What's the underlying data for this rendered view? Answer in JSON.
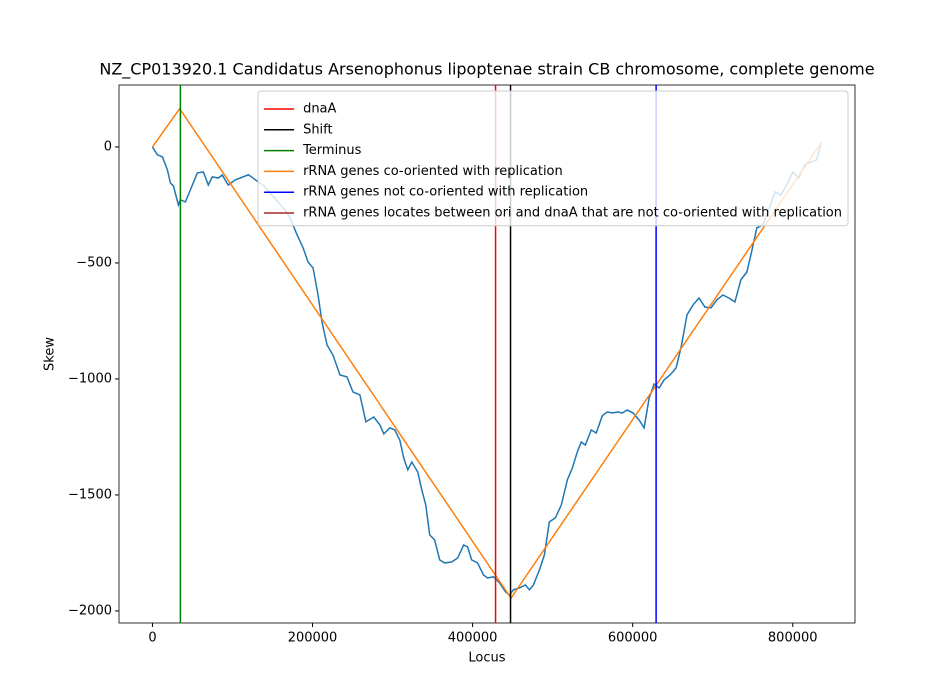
{
  "chart_data": {
    "type": "line",
    "title": "NZ_CP013920.1 Candidatus Arsenophonus lipoptenae strain CB chromosome, complete genome",
    "xlabel": "Locus",
    "ylabel": "Skew",
    "xlim": [
      -41800,
      877800
    ],
    "ylim": [
      -2052,
      267
    ],
    "xticks": [
      0,
      200000,
      400000,
      600000,
      800000
    ],
    "yticks": [
      {
        "value": -2000,
        "label": "−2000"
      },
      {
        "value": -1500,
        "label": "−1500"
      },
      {
        "value": -1000,
        "label": "−1000"
      },
      {
        "value": -500,
        "label": "−500"
      },
      0
    ],
    "legend": "upper right",
    "lines": [
      {
        "color": "#1f77b4",
        "x": [
          0,
          6200,
          12500,
          18700,
          22400,
          26200,
          32400,
          34900,
          41100,
          47400,
          56100,
          63600,
          69800,
          74800,
          82200,
          87200,
          94700,
          103400,
          120000,
          140000,
          165700,
          172000,
          180700,
          188200,
          194400,
          200700,
          206900,
          211800,
          218100,
          225500,
          234300,
          243000,
          250500,
          259200,
          266700,
          276600,
          284100,
          289100,
          296600,
          302800,
          309000,
          314000,
          319000,
          324000,
          331500,
          336500,
          341500,
          346400,
          352600,
          358900,
          365100,
          373800,
          381300,
          388800,
          393800,
          398800,
          406200,
          413700,
          418700,
          426200,
          433600,
          441100,
          446100,
          451100,
          458600,
          466000,
          471000,
          476000,
          483500,
          489700,
          495900,
          503400,
          510900,
          518400,
          524600,
          530800,
          535800,
          540800,
          548300,
          554500,
          562000,
          568200,
          574500,
          581900,
          586900,
          593100,
          600600,
          608100,
          614300,
          620600,
          626800,
          633100,
          639300,
          646700,
          654200,
          660400,
          667900,
          675400,
          682900,
          690300,
          697800,
          705300,
          712800,
          720200,
          727700,
          735200,
          742700,
          747700,
          755100,
          762600,
          770100,
          777600,
          785000,
          792500,
          800000,
          807500,
          815000,
          822400,
          829900,
          834900
        ],
        "values": [
          0,
          -34,
          -43,
          -99,
          -155,
          -168,
          -250,
          -228,
          -237,
          -185,
          -112,
          -108,
          -164,
          -129,
          -134,
          -121,
          -164,
          -142,
          -120,
          -170,
          -272,
          -306,
          -379,
          -435,
          -496,
          -522,
          -638,
          -754,
          -853,
          -897,
          -983,
          -991,
          -1056,
          -1069,
          -1185,
          -1164,
          -1198,
          -1237,
          -1211,
          -1220,
          -1263,
          -1341,
          -1392,
          -1358,
          -1401,
          -1478,
          -1543,
          -1672,
          -1694,
          -1780,
          -1793,
          -1789,
          -1772,
          -1716,
          -1724,
          -1780,
          -1793,
          -1845,
          -1858,
          -1853,
          -1879,
          -1918,
          -1931,
          -1909,
          -1901,
          -1888,
          -1909,
          -1888,
          -1823,
          -1759,
          -1616,
          -1599,
          -1543,
          -1435,
          -1384,
          -1315,
          -1272,
          -1285,
          -1220,
          -1233,
          -1159,
          -1142,
          -1147,
          -1142,
          -1147,
          -1134,
          -1147,
          -1177,
          -1211,
          -1082,
          -1022,
          -1039,
          -1004,
          -983,
          -953,
          -866,
          -724,
          -681,
          -651,
          -690,
          -694,
          -659,
          -638,
          -651,
          -668,
          -573,
          -539,
          -466,
          -349,
          -336,
          -272,
          -194,
          -207,
          -164,
          -108,
          -134,
          -78,
          -65,
          -56,
          9
        ]
      },
      {
        "color": "#ff7f0e",
        "x": [
          0,
          34000,
          448000,
          836000
        ],
        "values": [
          0,
          165,
          -1945,
          20
        ]
      }
    ],
    "vlines": [
      {
        "name": "dnaA",
        "color": "#ff0000",
        "x": [
          428700
        ]
      },
      {
        "name": "Shift",
        "color": "#000000",
        "x": [
          447400
        ]
      },
      {
        "name": "Terminus",
        "color": "#008000",
        "x": [
          34900
        ]
      },
      {
        "name": "rRNA genes co-oriented with replication",
        "color": "#ff7f0e",
        "x": []
      },
      {
        "name": "rRNA genes not co-oriented with replication",
        "color": "#0000ff",
        "x": [
          629300
        ]
      },
      {
        "name": "rRNA genes locates between ori and dnaA that are not co-oriented with replication",
        "color": "#a52a2a",
        "x": []
      }
    ]
  }
}
